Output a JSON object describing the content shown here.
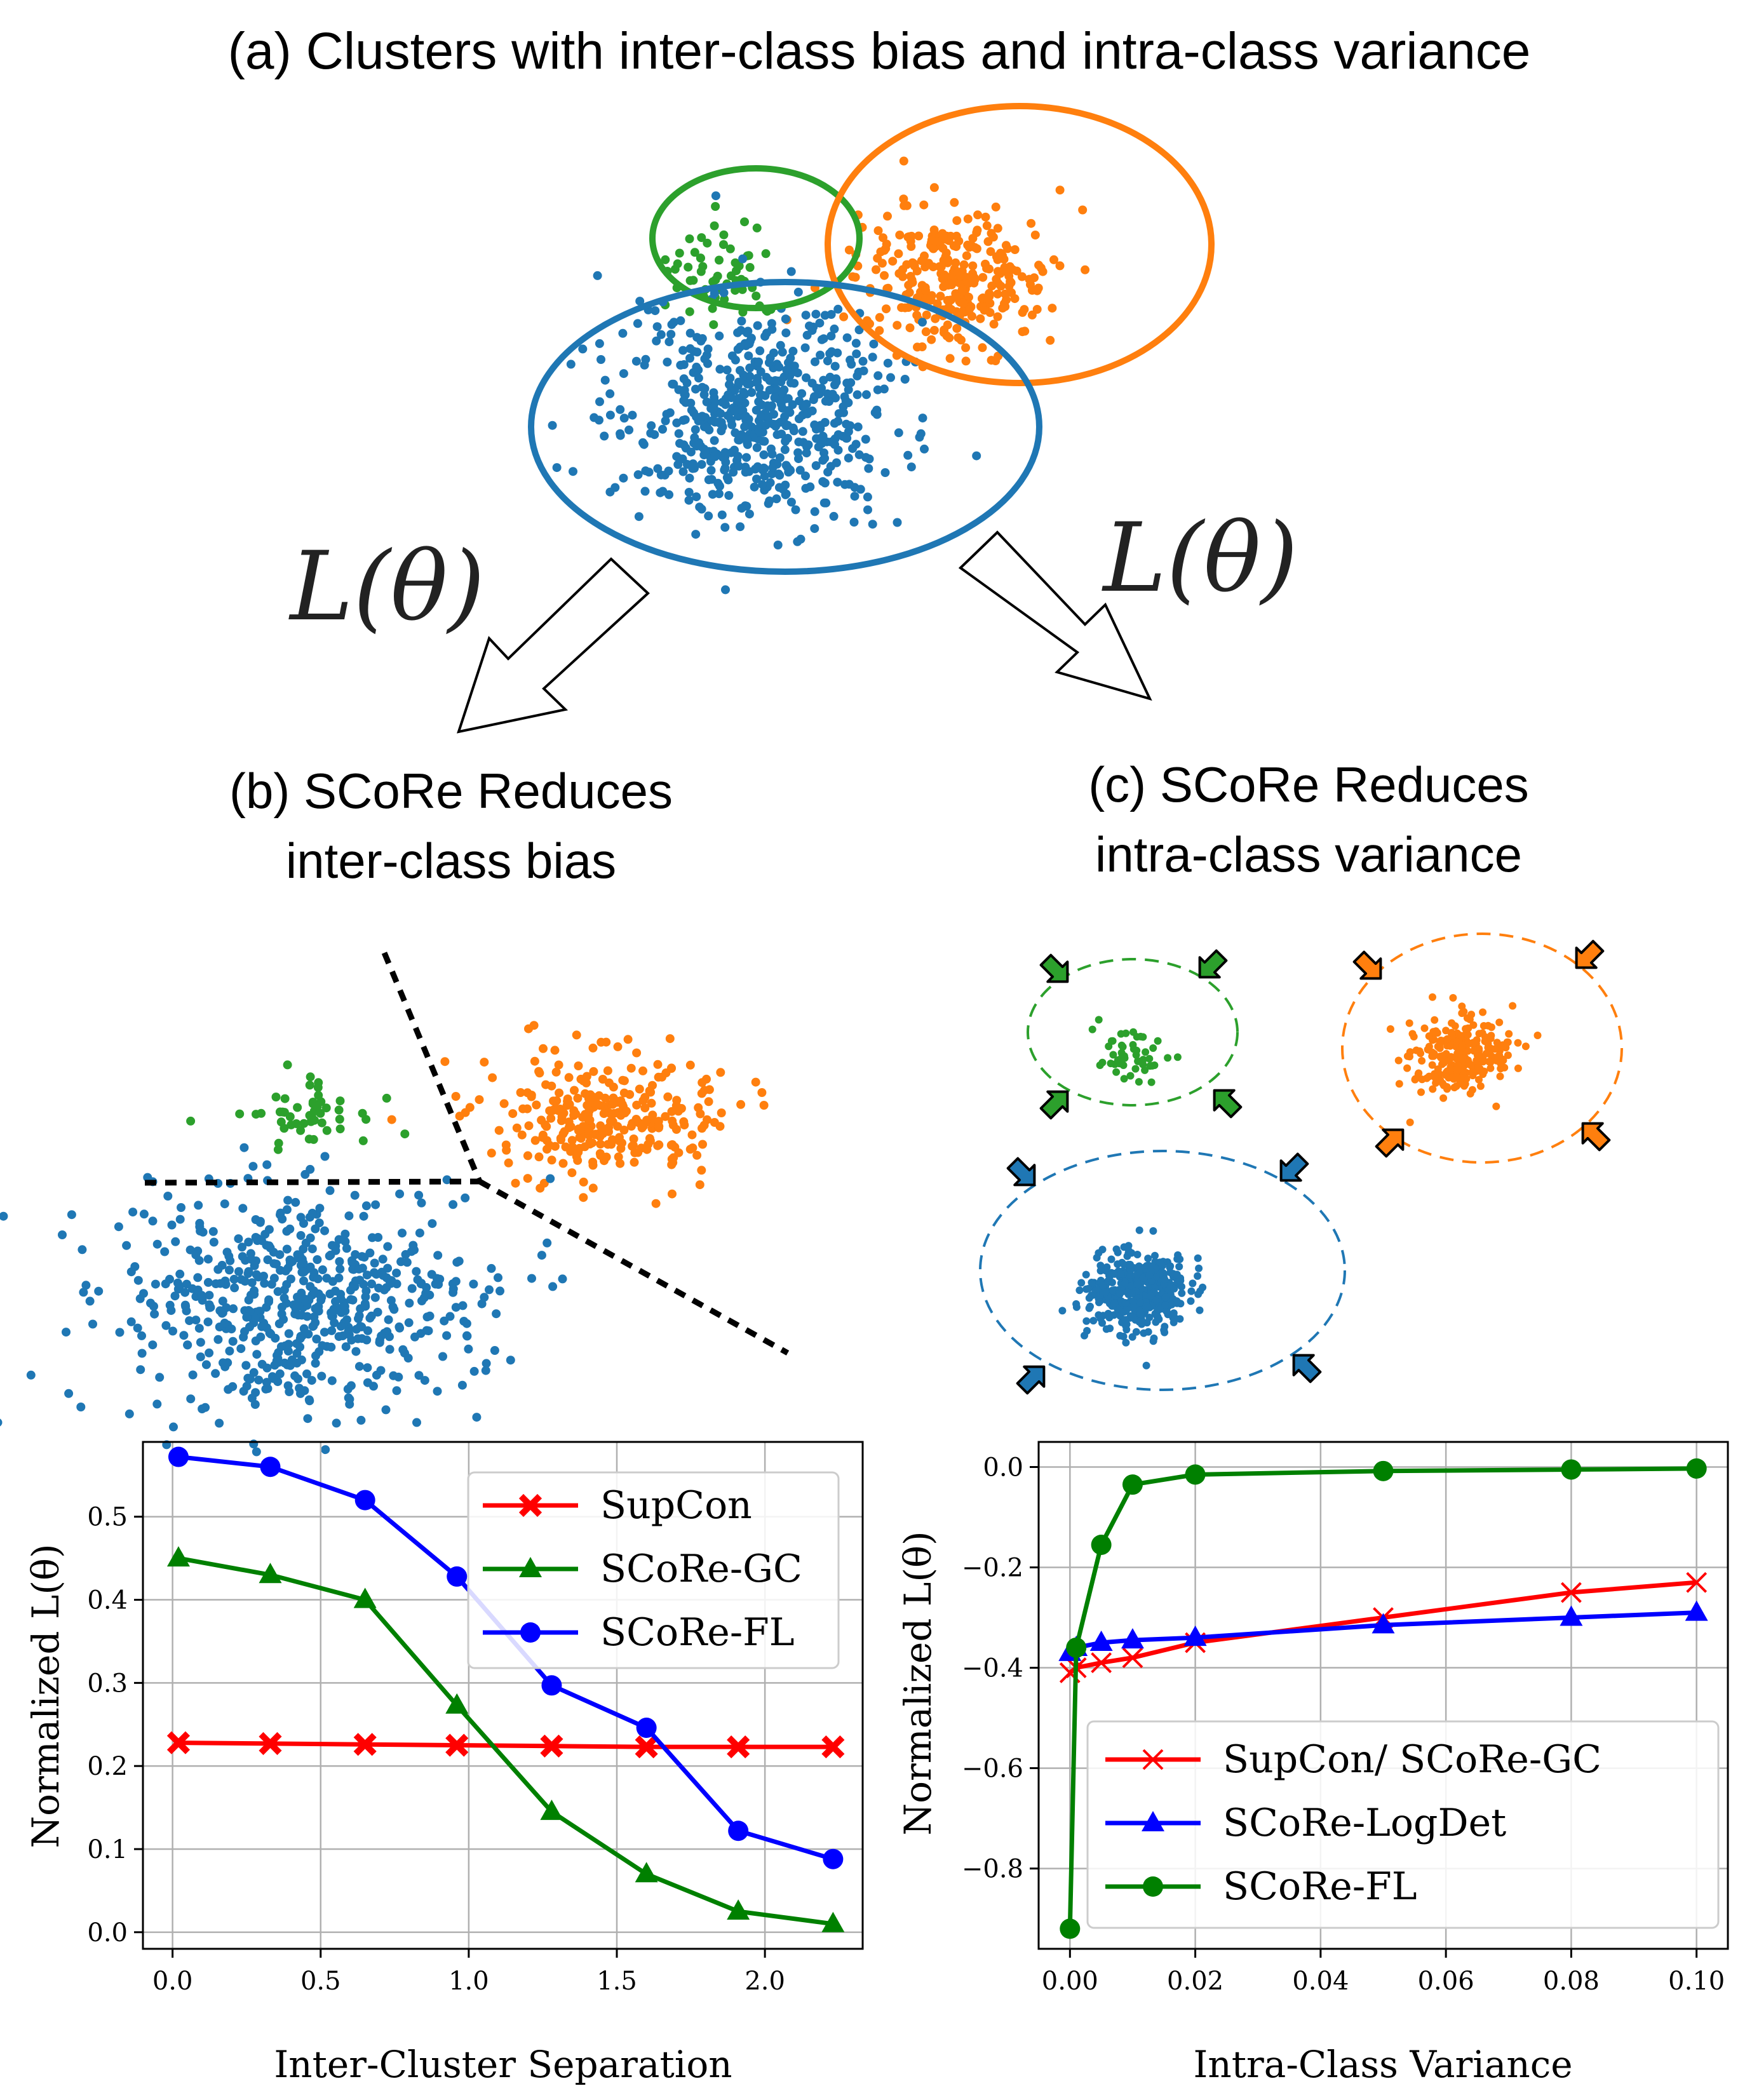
{
  "figure": {
    "title_a": "(a) Clusters with inter-class bias and intra-class variance",
    "loss_label": "L(θ)",
    "title_b": [
      "(b) SCoRe Reduces",
      "inter-class bias"
    ],
    "title_c": [
      "(c) SCoRe Reduces",
      "intra-class variance"
    ]
  },
  "colors": {
    "blue": "#1f77b4",
    "orange": "#ff7f0e",
    "green": "#2ca02c",
    "red_line": "#ff0000",
    "blue_line": "#0000ff",
    "green_line": "#008000"
  },
  "chart_data": [
    {
      "type": "line",
      "xlabel": "Inter-Cluster Separation",
      "ylabel": "Normalized L(θ)",
      "xlim": [
        -0.1,
        2.33
      ],
      "ylim": [
        -0.02,
        0.59
      ],
      "xticks": [
        0.0,
        0.5,
        1.0,
        1.5,
        2.0
      ],
      "xtick_labels": [
        "0.0",
        "0.5",
        "1.0",
        "1.5",
        "2.0"
      ],
      "yticks": [
        0.0,
        0.1,
        0.2,
        0.3,
        0.4,
        0.5
      ],
      "ytick_labels": [
        "0.0",
        "0.1",
        "0.2",
        "0.3",
        "0.4",
        "0.5"
      ],
      "legend_position": "top-right",
      "x": [
        0.02,
        0.33,
        0.65,
        0.96,
        1.28,
        1.6,
        1.91,
        2.23
      ],
      "series": [
        {
          "name": "SupCon",
          "color": "#ff0000",
          "marker": "X",
          "values": [
            0.228,
            0.227,
            0.226,
            0.225,
            0.224,
            0.223,
            0.223,
            0.223
          ]
        },
        {
          "name": "SCoRe-GC",
          "color": "#008000",
          "marker": "triangle",
          "values": [
            0.45,
            0.43,
            0.4,
            0.273,
            0.145,
            0.07,
            0.025,
            0.01
          ]
        },
        {
          "name": "SCoRe-FL",
          "color": "#0000ff",
          "marker": "circle",
          "values": [
            0.572,
            0.56,
            0.52,
            0.428,
            0.297,
            0.246,
            0.122,
            0.088
          ]
        }
      ]
    },
    {
      "type": "line",
      "xlabel": "Intra-Class Variance",
      "ylabel": "Normalized L(θ)",
      "xlim": [
        -0.005,
        0.105
      ],
      "ylim": [
        -0.96,
        0.05
      ],
      "xticks": [
        0.0,
        0.02,
        0.04,
        0.06,
        0.08,
        0.1
      ],
      "xtick_labels": [
        "0.00",
        "0.02",
        "0.04",
        "0.06",
        "0.08",
        "0.10"
      ],
      "yticks": [
        0.0,
        -0.2,
        -0.4,
        -0.6,
        -0.8
      ],
      "ytick_labels": [
        "0.0",
        "−0.2",
        "−0.4",
        "−0.6",
        "−0.8"
      ],
      "legend_position": "lower-right",
      "x": [
        0.0,
        0.001,
        0.005,
        0.01,
        0.02,
        0.05,
        0.08,
        0.1
      ],
      "series": [
        {
          "name": "SupCon/ SCoRe-GC",
          "color": "#ff0000",
          "marker": "x",
          "values": [
            -0.41,
            -0.4,
            -0.39,
            -0.38,
            -0.35,
            -0.3,
            -0.25,
            -0.23
          ]
        },
        {
          "name": "SCoRe-LogDet",
          "color": "#0000ff",
          "marker": "triangle",
          "values": [
            -0.37,
            -0.36,
            -0.35,
            -0.345,
            -0.34,
            -0.315,
            -0.3,
            -0.29
          ]
        },
        {
          "name": "SCoRe-FL",
          "color": "#008000",
          "marker": "circle",
          "values": [
            -0.92,
            -0.36,
            -0.155,
            -0.035,
            -0.015,
            -0.008,
            -0.005,
            -0.003
          ]
        }
      ]
    }
  ]
}
